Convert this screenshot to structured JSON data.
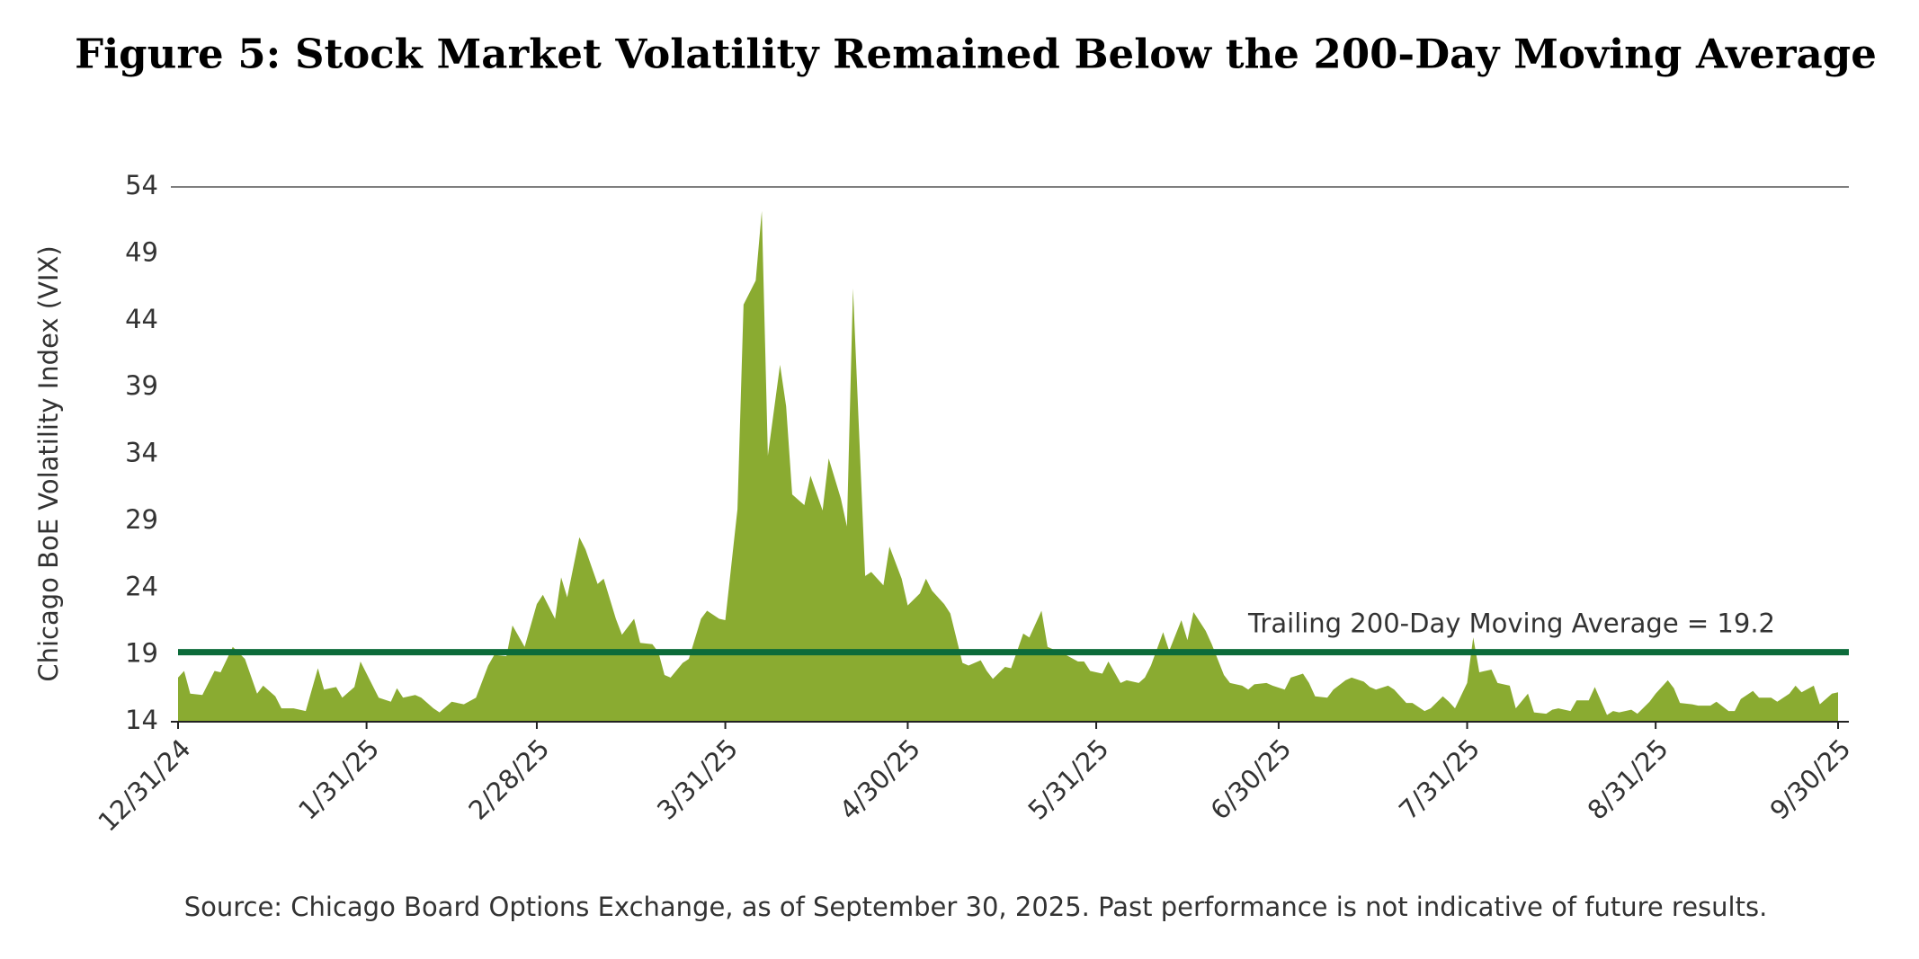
{
  "chart_data": {
    "type": "area",
    "title": "Figure 5: Stock Market Volatility Remained Below the 200-Day Moving Average",
    "y_label": "Chicago BoE Volatility Index (VIX)",
    "source": "Source: Chicago Board Options Exchange, as of September 30, 2025. Past performance is not indicative of future results.",
    "x": [
      "12/31/24",
      "1/1/25",
      "1/2/25",
      "1/4/25",
      "1/6/25",
      "1/7/25",
      "1/9/25",
      "1/11/25",
      "1/13/25",
      "1/14/25",
      "1/16/25",
      "1/17/25",
      "1/19/25",
      "1/21/25",
      "1/23/25",
      "1/24/25",
      "1/26/25",
      "1/27/25",
      "1/29/25",
      "1/30/25",
      "2/2/25",
      "2/4/25",
      "2/5/25",
      "2/6/25",
      "2/8/25",
      "2/9/25",
      "2/11/25",
      "2/12/25",
      "2/14/25",
      "2/16/25",
      "2/18/25",
      "2/20/25",
      "2/21/25",
      "2/23/25",
      "2/24/25",
      "2/26/25",
      "2/28/25",
      "3/1/25",
      "3/3/25",
      "3/4/25",
      "3/5/25",
      "3/7/25",
      "3/8/25",
      "3/10/25",
      "3/11/25",
      "3/13/25",
      "3/14/25",
      "3/16/25",
      "3/17/25",
      "3/19/25",
      "3/20/25",
      "3/21/25",
      "3/22/25",
      "3/24/25",
      "3/25/25",
      "3/27/25",
      "3/28/25",
      "3/30/25",
      "3/31/25",
      "4/2/25",
      "4/3/25",
      "4/5/25",
      "4/6/25",
      "4/7/25",
      "4/9/25",
      "4/10/25",
      "4/11/25",
      "4/13/25",
      "4/14/25",
      "4/16/25",
      "4/17/25",
      "4/19/25",
      "4/20/25",
      "4/21/25",
      "4/23/25",
      "4/24/25",
      "4/26/25",
      "4/27/25",
      "4/29/25",
      "4/30/25",
      "5/2/25",
      "5/3/25",
      "5/4/25",
      "5/6/25",
      "5/7/25",
      "5/9/25",
      "5/10/25",
      "5/12/25",
      "5/13/25",
      "5/14/25",
      "5/16/25",
      "5/17/25",
      "5/19/25",
      "5/20/25",
      "5/22/25",
      "5/23/25",
      "5/25/25",
      "5/26/25",
      "5/28/25",
      "5/29/25",
      "5/30/25",
      "6/1/25",
      "6/2/25",
      "6/4/25",
      "6/5/25",
      "6/7/25",
      "6/8/25",
      "6/9/25",
      "6/11/25",
      "6/12/25",
      "6/14/25",
      "6/15/25",
      "6/16/25",
      "6/18/25",
      "6/19/25",
      "6/21/25",
      "6/22/25",
      "6/24/25",
      "6/25/25",
      "6/26/25",
      "6/28/25",
      "6/29/25",
      "7/1/25",
      "7/2/25",
      "7/4/25",
      "7/5/25",
      "7/6/25",
      "7/8/25",
      "7/9/25",
      "7/11/25",
      "7/12/25",
      "7/14/25",
      "7/15/25",
      "7/16/25",
      "7/18/25",
      "7/19/25",
      "7/21/25",
      "7/22/25",
      "7/24/25",
      "7/25/25",
      "7/27/25",
      "7/28/25",
      "7/29/25",
      "7/31/25",
      "8/1/25",
      "8/2/25",
      "8/4/25",
      "8/5/25",
      "8/7/25",
      "8/8/25",
      "8/10/25",
      "8/11/25",
      "8/13/25",
      "8/14/25",
      "8/15/25",
      "8/17/25",
      "8/18/25",
      "8/20/25",
      "8/21/25",
      "8/23/25",
      "8/24/25",
      "8/25/25",
      "8/27/25",
      "8/28/25",
      "8/30/25",
      "8/31/25",
      "9/2/25",
      "9/3/25",
      "9/4/25",
      "9/6/25",
      "9/7/25",
      "9/9/25",
      "9/10/25",
      "9/12/25",
      "9/13/25",
      "9/14/25",
      "9/16/25",
      "9/17/25",
      "9/19/25",
      "9/20/25",
      "9/22/25",
      "9/23/25",
      "9/24/25",
      "9/26/25",
      "9/27/25",
      "9/29/25",
      "9/30/25"
    ],
    "series": [
      {
        "color": "#8aab31",
        "values": [
          17.3,
          17.8,
          16.1,
          16.0,
          17.8,
          17.7,
          19.6,
          18.7,
          16.1,
          16.7,
          15.9,
          15.0,
          15.0,
          14.8,
          18.0,
          16.4,
          16.6,
          15.8,
          16.6,
          18.5,
          15.8,
          15.5,
          16.5,
          15.8,
          16.0,
          15.8,
          15.0,
          14.7,
          15.5,
          15.3,
          15.8,
          18.2,
          19.0,
          18.9,
          21.2,
          19.6,
          22.8,
          23.5,
          21.7,
          24.8,
          23.3,
          27.8,
          26.9,
          24.3,
          24.7,
          21.7,
          20.5,
          21.7,
          19.9,
          19.8,
          19.2,
          17.5,
          17.3,
          18.4,
          18.7,
          21.7,
          22.3,
          21.7,
          21.6,
          29.9,
          45.2,
          47.0,
          52.2,
          33.9,
          40.7,
          37.6,
          31.0,
          30.2,
          32.4,
          29.8,
          33.7,
          30.7,
          28.6,
          46.4,
          24.9,
          25.2,
          24.2,
          27.1,
          24.7,
          22.7,
          23.6,
          24.7,
          23.8,
          22.8,
          22.1,
          18.4,
          18.2,
          18.6,
          17.8,
          17.2,
          18.1,
          18.0,
          20.6,
          20.3,
          22.3,
          19.6,
          19.2,
          19.0,
          18.5,
          18.5,
          17.8,
          17.6,
          18.5,
          16.9,
          17.1,
          16.9,
          17.3,
          18.2,
          20.7,
          19.3,
          21.6,
          20.1,
          22.2,
          20.8,
          19.8,
          17.5,
          16.9,
          16.7,
          16.4,
          16.8,
          16.9,
          16.7,
          16.4,
          17.3,
          17.6,
          16.9,
          15.9,
          15.8,
          16.4,
          17.1,
          17.3,
          17.0,
          16.6,
          16.4,
          16.7,
          16.4,
          15.4,
          15.4,
          14.8,
          15.0,
          15.9,
          15.5,
          15.0,
          16.9,
          20.3,
          17.7,
          17.9,
          16.9,
          16.7,
          15.0,
          16.1,
          14.7,
          14.6,
          14.9,
          15.0,
          14.8,
          15.6,
          15.6,
          16.6,
          14.5,
          14.8,
          14.7,
          14.9,
          14.6,
          15.5,
          16.1,
          17.1,
          16.5,
          15.4,
          15.3,
          15.2,
          15.2,
          15.5,
          14.8,
          14.8,
          15.7,
          16.3,
          15.8,
          15.8,
          15.5,
          16.1,
          16.7,
          16.2,
          16.7,
          15.3,
          16.1,
          16.2
        ]
      }
    ],
    "reference_line": {
      "value": 19.2,
      "label": "Trailing 200-Day Moving Average = 19.2",
      "color": "#0c6b3a"
    },
    "xlim": [
      "12/31/24",
      "9/30/25"
    ],
    "xticks": [
      "12/31/24",
      "1/31/25",
      "2/28/25",
      "3/31/25",
      "4/30/25",
      "5/31/25",
      "6/30/25",
      "7/31/25",
      "8/31/25",
      "9/30/25"
    ],
    "ylim": [
      14,
      54
    ],
    "yticks": [
      14,
      19,
      24,
      29,
      34,
      39,
      44,
      49,
      54
    ],
    "grid": false
  }
}
